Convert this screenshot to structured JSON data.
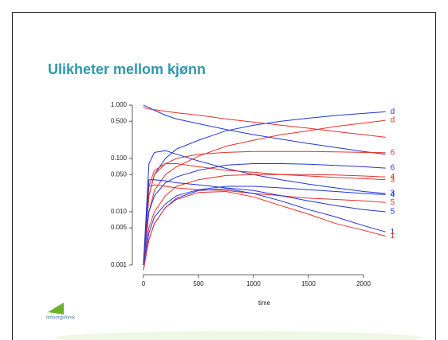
{
  "title": "Ulikheter mellom kjønn",
  "logo_text": "omsorgsforsk",
  "chart_data": {
    "type": "line",
    "log_y": true,
    "xlabel": "time",
    "x": [
      0,
      50,
      100,
      200,
      300,
      500,
      750,
      1000,
      1250,
      1500,
      1750,
      2000,
      2200
    ],
    "xlim": [
      -101,
      2297
    ],
    "xticks": [
      0,
      500,
      1000,
      1500,
      2000
    ],
    "ylim": [
      0.00066,
      1.19
    ],
    "yticks": [
      {
        "value": 1,
        "label": "1.000"
      },
      {
        "value": 0.5,
        "label": "0.500"
      },
      {
        "value": 0.1,
        "label": "0.100"
      },
      {
        "value": 0.05,
        "label": "0.050"
      },
      {
        "value": 0.01,
        "label": "0.010"
      },
      {
        "value": 0.005,
        "label": "0.005"
      },
      {
        "value": 0.001,
        "label": "0.001"
      }
    ],
    "series": [
      {
        "name": "d",
        "color": "#2433d6",
        "values": [
          0.001,
          0.02,
          0.05,
          0.1,
          0.15,
          0.22,
          0.33,
          0.42,
          0.5,
          0.57,
          0.64,
          0.7,
          0.75
        ]
      },
      {
        "name": "d",
        "color": "#e2302c",
        "values": [
          0.001,
          0.01,
          0.025,
          0.05,
          0.07,
          0.11,
          0.17,
          0.22,
          0.28,
          0.33,
          0.4,
          0.46,
          0.52
        ]
      },
      {
        "color": "#2433d6",
        "values": [
          1.0,
          0.9,
          0.8,
          0.65,
          0.55,
          0.45,
          0.35,
          0.28,
          0.23,
          0.19,
          0.16,
          0.135,
          0.12
        ]
      },
      {
        "color": "#e2302c",
        "values": [
          0.9,
          0.85,
          0.82,
          0.77,
          0.72,
          0.65,
          0.55,
          0.48,
          0.42,
          0.37,
          0.32,
          0.28,
          0.25
        ]
      },
      {
        "name": "6",
        "color": "#e2302c",
        "values": [
          0.001,
          0.02,
          0.05,
          0.08,
          0.1,
          0.12,
          0.13,
          0.135,
          0.135,
          0.135,
          0.133,
          0.13,
          0.128
        ]
      },
      {
        "name": "6",
        "color": "#2433d6",
        "values": [
          0.001,
          0.01,
          0.02,
          0.035,
          0.045,
          0.06,
          0.075,
          0.08,
          0.08,
          0.078,
          0.074,
          0.07,
          0.066
        ]
      },
      {
        "name": "3",
        "color": "#2433d6",
        "values": [
          0.001,
          0.08,
          0.13,
          0.14,
          0.12,
          0.09,
          0.065,
          0.05,
          0.04,
          0.033,
          0.028,
          0.024,
          0.022
        ]
      },
      {
        "name": "3",
        "color": "#e2302c",
        "values": [
          0.001,
          0.03,
          0.06,
          0.08,
          0.08,
          0.07,
          0.06,
          0.055,
          0.05,
          0.047,
          0.044,
          0.042,
          0.04
        ]
      },
      {
        "name": "4",
        "color": "#e2302c",
        "values": [
          0.001,
          0.005,
          0.01,
          0.02,
          0.03,
          0.04,
          0.048,
          0.05,
          0.05,
          0.05,
          0.049,
          0.047,
          0.045
        ]
      },
      {
        "name": "4",
        "color": "#2433d6",
        "values": [
          0.001,
          0.004,
          0.008,
          0.014,
          0.02,
          0.026,
          0.03,
          0.03,
          0.028,
          0.026,
          0.024,
          0.022,
          0.021
        ]
      },
      {
        "name": "5",
        "color": "#e2302c",
        "values": [
          0.001,
          0.03,
          0.032,
          0.03,
          0.028,
          0.026,
          0.025,
          0.022,
          0.02,
          0.018,
          0.017,
          0.016,
          0.015
        ]
      },
      {
        "name": "5",
        "color": "#2433d6",
        "values": [
          0.001,
          0.04,
          0.04,
          0.038,
          0.035,
          0.032,
          0.028,
          0.025,
          0.02,
          0.016,
          0.013,
          0.011,
          0.01
        ]
      },
      {
        "name": "1",
        "color": "#2433d6",
        "values": [
          0.0008,
          0.003,
          0.006,
          0.012,
          0.018,
          0.025,
          0.027,
          0.022,
          0.016,
          0.011,
          0.008,
          0.0055,
          0.0042
        ]
      },
      {
        "name": "1",
        "color": "#e2302c",
        "values": [
          0.0008,
          0.003,
          0.006,
          0.012,
          0.017,
          0.023,
          0.024,
          0.019,
          0.013,
          0.009,
          0.006,
          0.0045,
          0.0035
        ]
      }
    ]
  }
}
